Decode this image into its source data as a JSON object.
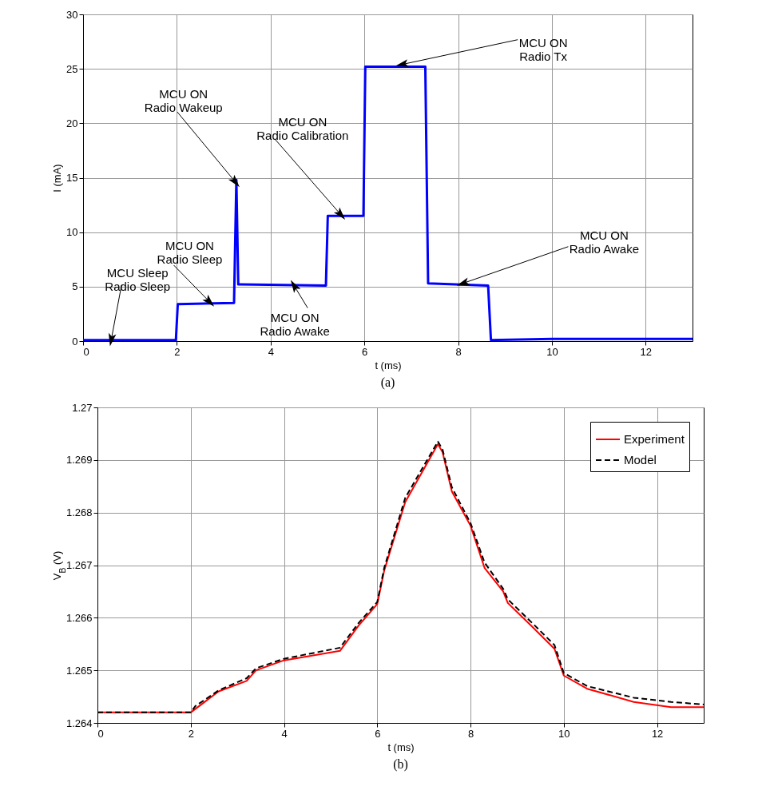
{
  "chart_data": [
    {
      "type": "line",
      "xlabel": "t (ms)",
      "ylabel": "I (mA)",
      "xlim": [
        0,
        13
      ],
      "xticks": [
        0,
        2,
        4,
        6,
        8,
        10,
        12
      ],
      "ylim": [
        0,
        30
      ],
      "yticks": [
        0,
        5,
        10,
        15,
        20,
        25,
        30
      ],
      "grid": true,
      "series": [
        {
          "color": "#0000ff",
          "x": [
            0,
            1.98,
            2.02,
            3.22,
            3.27,
            3.31,
            3.35,
            5.18,
            5.22,
            5.98,
            6.02,
            7.3,
            7.36,
            8.64,
            8.7,
            10,
            13
          ],
          "values": [
            0.1,
            0.1,
            3.4,
            3.5,
            14.8,
            5.2,
            5.2,
            5.1,
            11.5,
            11.5,
            25.2,
            25.2,
            5.3,
            5.1,
            0.1,
            0.2,
            0.2
          ]
        }
      ],
      "annotations": [
        {
          "text": "MCU Sleep\nRadio Sleep",
          "x": 0.6,
          "y": 0.1
        },
        {
          "text": "MCU ON\nRadio Sleep",
          "x": 2.7,
          "y": 3.6
        },
        {
          "text": "MCU ON\nRadio Wakeup",
          "x": 3.25,
          "y": 14.6
        },
        {
          "text": "MCU ON\nRadio Awake",
          "x": 4.5,
          "y": 5.1
        },
        {
          "text": "MCU ON\nRadio Calibration",
          "x": 5.5,
          "y": 11.6
        },
        {
          "text": "MCU ON\nRadio Tx",
          "x": 6.8,
          "y": 25.4
        },
        {
          "text": "MCU ON\nRadio Awake",
          "x": 8.1,
          "y": 5.3
        },
        "(a)"
      ]
    },
    {
      "type": "line",
      "xlabel": "t (ms)",
      "ylabel": "V$_{B}$ (V)",
      "xlim": [
        0,
        13
      ],
      "xticks": [
        0,
        2,
        4,
        6,
        8,
        10,
        12
      ],
      "ylim": [
        1.264,
        1.27
      ],
      "yticks": [
        1.264,
        1.265,
        1.266,
        1.267,
        1.268,
        1.269,
        1.27
      ],
      "grid": true,
      "legend": "top right",
      "series": [
        {
          "name": "Experiment",
          "color": "#ff0000",
          "line_style": "solid",
          "x": [
            0,
            2,
            2.3,
            2.6,
            3.2,
            3.4,
            4,
            5.2,
            5.6,
            6,
            6.15,
            6.6,
            7.3,
            7.4,
            7.6,
            8,
            8.3,
            8.7,
            8.8,
            9.3,
            9.8,
            10,
            10.5,
            11.5,
            12.3,
            13
          ],
          "values": [
            1.2642,
            1.2642,
            1.2644,
            1.2646,
            1.2648,
            1.265,
            1.26519,
            1.26537,
            1.26585,
            1.26626,
            1.2669,
            1.2682,
            1.2693,
            1.26915,
            1.2684,
            1.26775,
            1.26695,
            1.2665,
            1.26628,
            1.26585,
            1.26541,
            1.2649,
            1.26465,
            1.2644,
            1.2643,
            1.2643
          ]
        },
        {
          "name": "Model",
          "color": "#000000",
          "line_style": "dashed",
          "x": [
            0,
            2,
            2.1,
            2.6,
            3.2,
            3.4,
            4,
            5.2,
            5.6,
            6,
            6.15,
            6.6,
            7.3,
            7.4,
            7.6,
            8,
            8.3,
            8.7,
            8.8,
            9.3,
            9.8,
            10,
            10.5,
            11.5,
            12.3,
            13
          ],
          "values": [
            1.2642,
            1.2642,
            1.26432,
            1.26462,
            1.26485,
            1.26504,
            1.26522,
            1.26543,
            1.2659,
            1.2663,
            1.26695,
            1.26828,
            1.26935,
            1.2692,
            1.26848,
            1.2678,
            1.26705,
            1.26655,
            1.26635,
            1.26592,
            1.26548,
            1.26495,
            1.2647,
            1.26448,
            1.2644,
            1.26435
          ]
        }
      ],
      "annotations": [
        "(b)"
      ]
    }
  ]
}
